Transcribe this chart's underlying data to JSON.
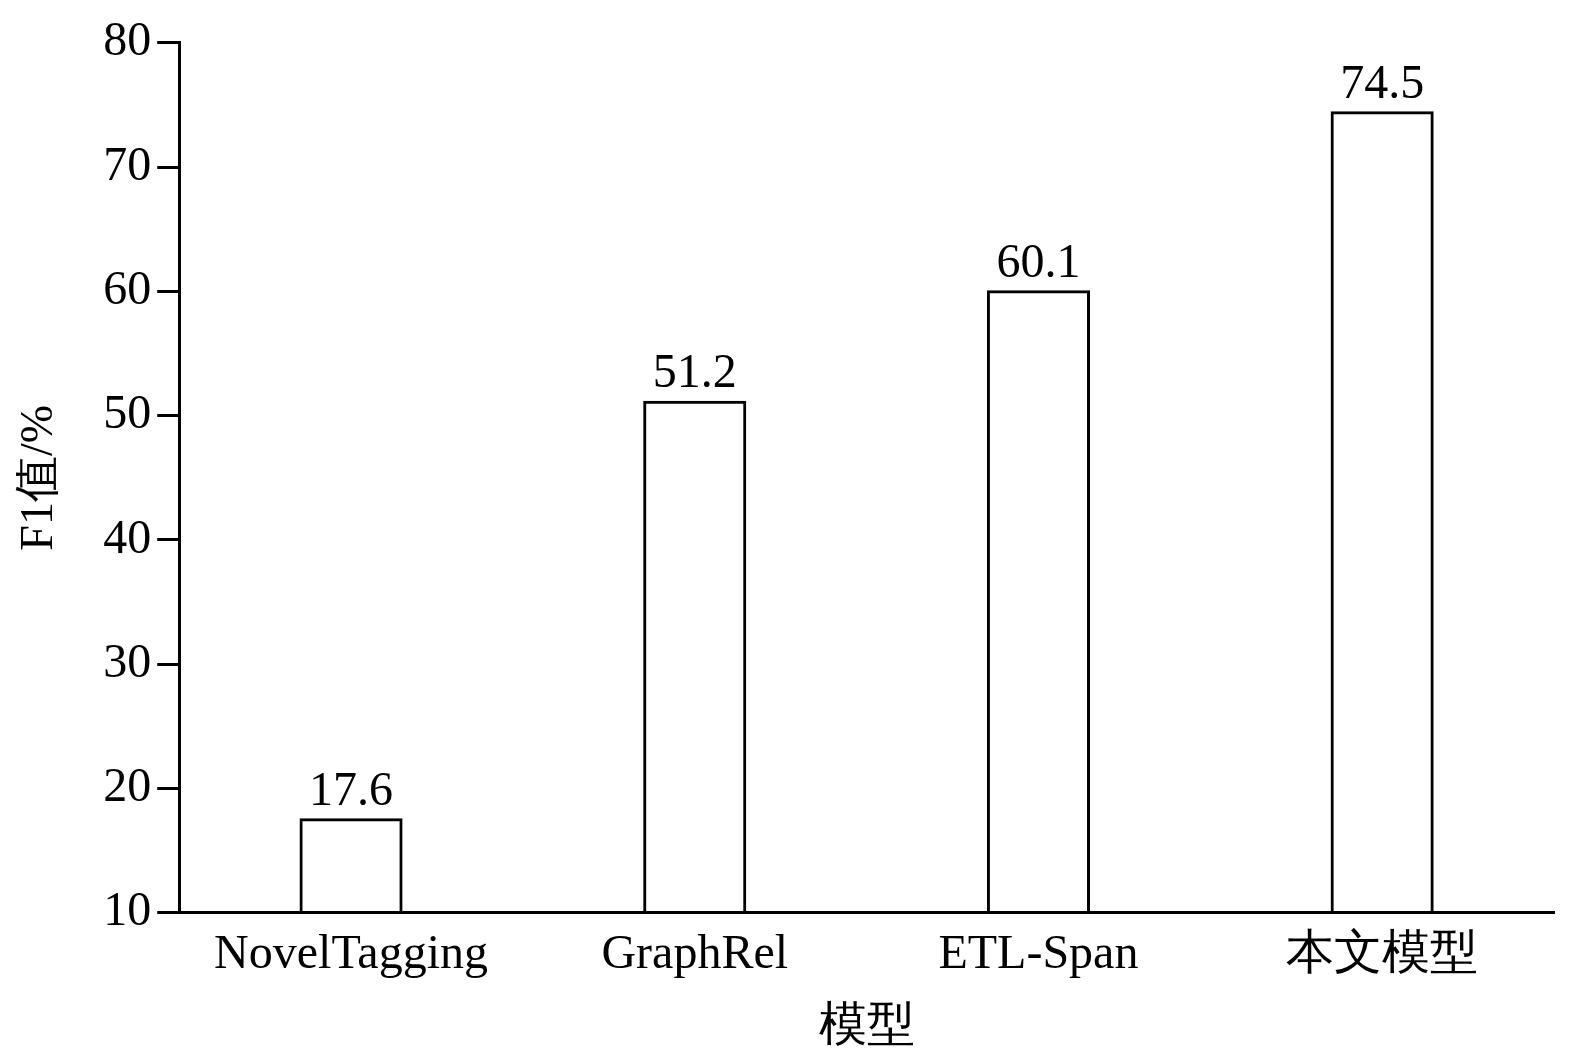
{
  "chart_data": {
    "type": "bar",
    "xlabel": "模型",
    "ylabel": "F1值/%",
    "categories": [
      "NovelTagging",
      "GraphRel",
      "ETL-Span",
      "本文模型"
    ],
    "values": [
      17.6,
      51.2,
      60.1,
      74.5
    ],
    "color": "#000000",
    "ylim": [
      10,
      80
    ],
    "yticks": [
      10,
      20,
      30,
      40,
      50,
      60,
      70,
      80
    ],
    "grid": false,
    "data_labels": true
  }
}
